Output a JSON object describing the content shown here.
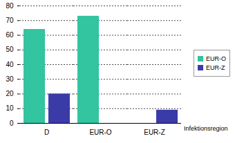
{
  "chart_data": {
    "type": "bar",
    "x_label": "Infektionsregion",
    "categories": [
      "D",
      "EUR-O",
      "EUR-Z"
    ],
    "series": [
      {
        "name": "EUR-O",
        "color": "#33c4a0",
        "values": [
          64,
          73,
          null
        ]
      },
      {
        "name": "EUR-Z",
        "color": "#3b3ba8",
        "values": [
          20,
          null,
          9
        ]
      }
    ],
    "ylim": [
      0,
      80
    ],
    "yticks": [
      0,
      10,
      20,
      30,
      40,
      50,
      60,
      70,
      80
    ],
    "grid": true,
    "legend": "right"
  }
}
